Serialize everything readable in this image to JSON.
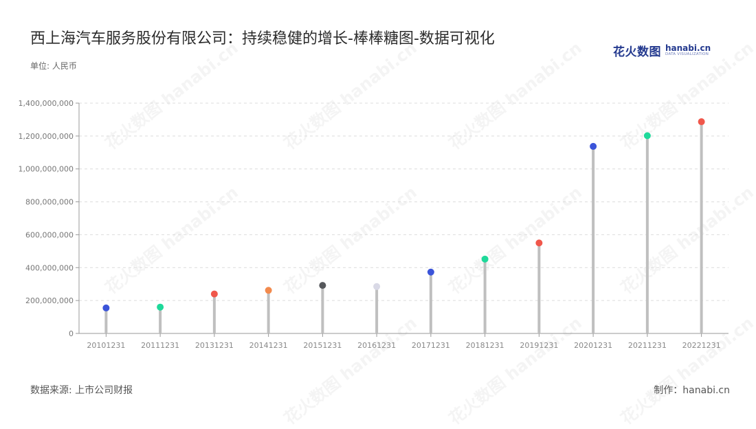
{
  "header": {
    "title": "西上海汽车服务股份有限公司：持续稳健的增长-棒棒糖图-数据可视化"
  },
  "brand": {
    "name_cn": "花火数图",
    "name_en": "hanabi.cn",
    "tagline": "DATA VISUALIZATION"
  },
  "unit_label": "单位: 人民币",
  "footer": {
    "source": "数据来源: 上市公司财报",
    "maker": "制作：hanabi.cn"
  },
  "chart_data": {
    "type": "bar",
    "style": "lollipop",
    "categories": [
      "20101231",
      "20111231",
      "20131231",
      "20141231",
      "20151231",
      "20161231",
      "20171231",
      "20181231",
      "20191231",
      "20201231",
      "20211231",
      "20221231"
    ],
    "values": [
      155000000,
      160000000,
      240000000,
      262000000,
      292000000,
      285000000,
      373000000,
      452000000,
      550000000,
      1137000000,
      1202000000,
      1287000000
    ],
    "point_colors": [
      "#3b54d9",
      "#1ed99a",
      "#f0574b",
      "#f28a4d",
      "#56585c",
      "#d9d9e6",
      "#3b54d9",
      "#1ed99a",
      "#f0574b",
      "#3b54d9",
      "#1ed99a",
      "#f0574b"
    ],
    "stem_color": "#bfbfbf",
    "ylim": [
      0,
      1400000000
    ],
    "yticks": [
      0,
      200000000,
      400000000,
      600000000,
      800000000,
      1000000000,
      1200000000,
      1400000000
    ],
    "ytick_labels": [
      "0",
      "200,000,000",
      "400,000,000",
      "600,000,000",
      "800,000,000",
      "1,000,000,000",
      "1,200,000,000",
      "1,400,000,000"
    ],
    "grid": true,
    "legend": "none"
  }
}
